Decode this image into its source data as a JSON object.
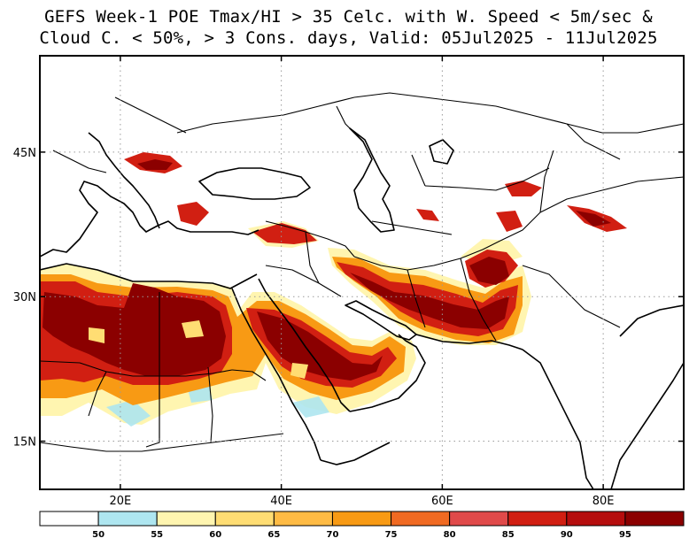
{
  "title": {
    "line1": "GEFS Week-1 POE Tmax/HI > 35 Celc. with W. Speed < 5m/sec &",
    "line2": "Cloud C. < 50%, > 3 Cons. days, Valid: 05Jul2025 - 11Jul2025"
  },
  "map": {
    "lon_range": [
      10,
      90
    ],
    "lat_range": [
      10,
      55
    ],
    "x_ticks": [
      {
        "lon": 20,
        "label": "20E"
      },
      {
        "lon": 40,
        "label": "40E"
      },
      {
        "lon": 60,
        "label": "60E"
      },
      {
        "lon": 80,
        "label": "80E"
      }
    ],
    "y_ticks": [
      {
        "lat": 45,
        "label": "45N"
      },
      {
        "lat": 30,
        "label": "30N"
      },
      {
        "lat": 15,
        "label": "15N"
      }
    ],
    "grid": "dotted"
  },
  "colorbar": {
    "labels": [
      "50",
      "55",
      "60",
      "65",
      "70",
      "75",
      "80",
      "85",
      "90",
      "95"
    ],
    "colors": [
      "#ffffff",
      "#aee6f0",
      "#fff5b0",
      "#ffdd73",
      "#ffbb44",
      "#f89a14",
      "#f06a22",
      "#e04a4a",
      "#d11f12",
      "#b50d0d",
      "#8b0000"
    ]
  },
  "colors": {
    "frame": "#000000",
    "coast": "#000000",
    "grid": "#9a9a9a"
  }
}
